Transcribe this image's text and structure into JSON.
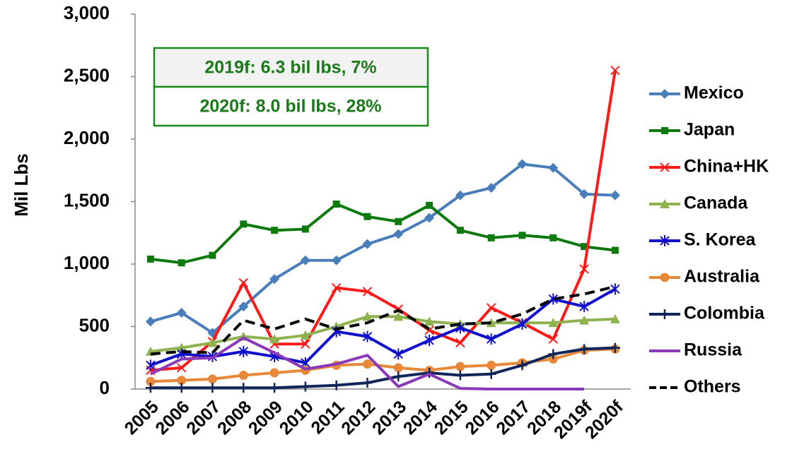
{
  "chart_data": {
    "type": "line",
    "y_label": "Mil Lbs",
    "annotations": [
      "2019f: 6.3 bil lbs, 7%",
      "2020f: 8.0 bil lbs, 28%"
    ],
    "categories": [
      "2005",
      "2006",
      "2007",
      "2008",
      "2009",
      "2010",
      "2011",
      "2012",
      "2013",
      "2014",
      "2015",
      "2016",
      "2017",
      "2018",
      "2019f",
      "2020f"
    ],
    "ylim": [
      0,
      3000
    ],
    "yticks": [
      0,
      500,
      {
        "value": 1000,
        "label": "1,000"
      },
      {
        "value": 1500,
        "label": "1,500"
      },
      {
        "value": 2000,
        "label": "2,000"
      },
      {
        "value": 2500,
        "label": "2,500"
      },
      {
        "value": 3000,
        "label": "3,000"
      }
    ],
    "grid": false,
    "legend": "right",
    "series": [
      {
        "name": "Mexico",
        "color": "#4a7ebb",
        "marker": "diamond",
        "values": [
          540,
          610,
          450,
          660,
          880,
          1030,
          1030,
          1160,
          1240,
          1370,
          1550,
          1610,
          1800,
          1770,
          1560,
          1550
        ]
      },
      {
        "name": "Japan",
        "color": "#0e7a0e",
        "marker": "square",
        "values": [
          1040,
          1010,
          1070,
          1320,
          1270,
          1280,
          1480,
          1380,
          1340,
          1470,
          1270,
          1210,
          1230,
          1210,
          1140,
          1110
        ]
      },
      {
        "name": "China+HK",
        "color": "#ff1a1a",
        "marker": "x",
        "values": [
          150,
          170,
          380,
          850,
          360,
          360,
          810,
          780,
          640,
          470,
          370,
          650,
          530,
          400,
          960,
          2550
        ]
      },
      {
        "name": "Canada",
        "color": "#8db24e",
        "marker": "triangle",
        "values": [
          300,
          330,
          370,
          420,
          400,
          430,
          500,
          580,
          580,
          540,
          520,
          530,
          530,
          530,
          550,
          560
        ]
      },
      {
        "name": "S. Korea",
        "color": "#1010cc",
        "marker": "star",
        "values": [
          190,
          280,
          260,
          300,
          260,
          210,
          460,
          420,
          280,
          390,
          490,
          400,
          520,
          720,
          660,
          800
        ]
      },
      {
        "name": "Australia",
        "color": "#e8893a",
        "marker": "circle",
        "values": [
          60,
          70,
          80,
          110,
          130,
          150,
          190,
          200,
          170,
          150,
          180,
          190,
          210,
          240,
          310,
          320
        ]
      },
      {
        "name": "Colombia",
        "color": "#10255a",
        "marker": "plus",
        "values": [
          10,
          10,
          10,
          10,
          10,
          20,
          30,
          50,
          100,
          130,
          110,
          120,
          190,
          280,
          320,
          330
        ]
      },
      {
        "name": "Russia",
        "color": "#8a3ab9",
        "marker": "none",
        "values": [
          120,
          240,
          250,
          410,
          290,
          160,
          200,
          270,
          20,
          120,
          5,
          0,
          0,
          0,
          0,
          null
        ]
      },
      {
        "name": "Others",
        "color": "#000000",
        "marker": "none",
        "dashed": true,
        "values": [
          280,
          300,
          290,
          550,
          480,
          560,
          480,
          530,
          630,
          480,
          520,
          530,
          600,
          720,
          760,
          820
        ]
      }
    ]
  }
}
